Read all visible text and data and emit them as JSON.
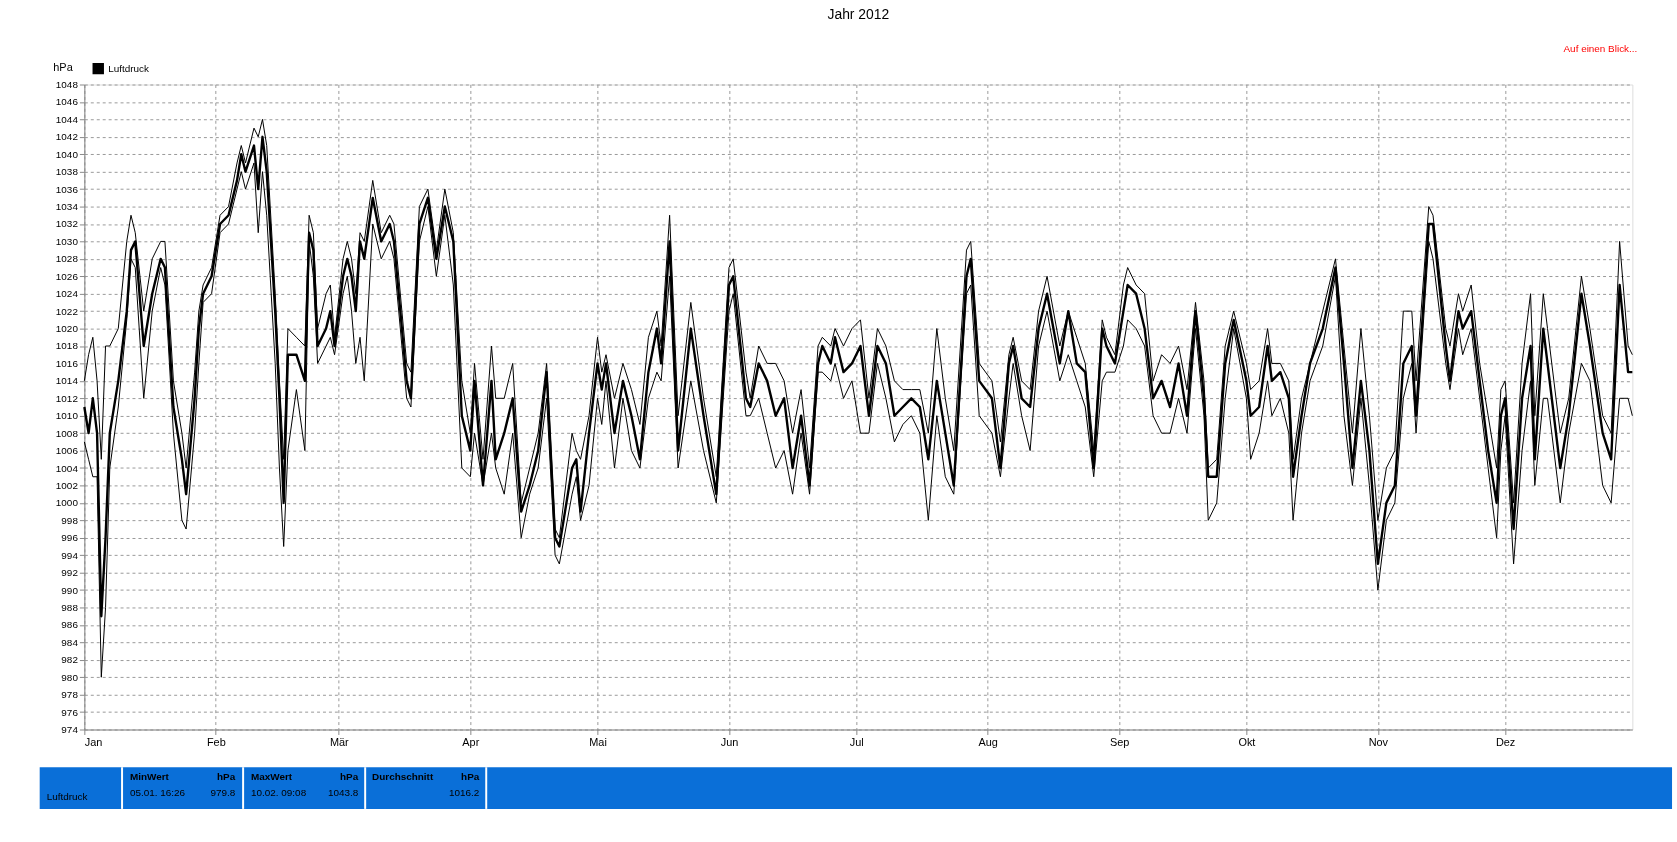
{
  "chart_data": {
    "type": "line",
    "title": "Jahr 2012",
    "ylabel": "hPa",
    "x": [
      "2012-01-01",
      "2012-01-02",
      "2012-01-03",
      "2012-01-04",
      "2012-01-05",
      "2012-01-06",
      "2012-01-07",
      "2012-01-09",
      "2012-01-11",
      "2012-01-12",
      "2012-01-13",
      "2012-01-15",
      "2012-01-17",
      "2012-01-19",
      "2012-01-20",
      "2012-01-22",
      "2012-01-24",
      "2012-01-25",
      "2012-01-27",
      "2012-01-28",
      "2012-01-29",
      "2012-01-31",
      "2012-02-02",
      "2012-02-04",
      "2012-02-06",
      "2012-02-07",
      "2012-02-08",
      "2012-02-10",
      "2012-02-11",
      "2012-02-12",
      "2012-02-13",
      "2012-02-15",
      "2012-02-16",
      "2012-02-17",
      "2012-02-18",
      "2012-02-20",
      "2012-02-22",
      "2012-02-23",
      "2012-02-24",
      "2012-02-25",
      "2012-02-27",
      "2012-02-28",
      "2012-02-29",
      "2012-03-02",
      "2012-03-03",
      "2012-03-04",
      "2012-03-05",
      "2012-03-06",
      "2012-03-07",
      "2012-03-09",
      "2012-03-11",
      "2012-03-13",
      "2012-03-14",
      "2012-03-17",
      "2012-03-18",
      "2012-03-20",
      "2012-03-22",
      "2012-03-24",
      "2012-03-26",
      "2012-03-28",
      "2012-03-30",
      "2012-04-01",
      "2012-04-02",
      "2012-04-04",
      "2012-04-06",
      "2012-04-07",
      "2012-04-09",
      "2012-04-11",
      "2012-04-13",
      "2012-04-15",
      "2012-04-17",
      "2012-04-19",
      "2012-04-21",
      "2012-04-22",
      "2012-04-25",
      "2012-04-26",
      "2012-04-27",
      "2012-04-29",
      "2012-05-01",
      "2012-05-02",
      "2012-05-03",
      "2012-05-05",
      "2012-05-07",
      "2012-05-09",
      "2012-05-11",
      "2012-05-13",
      "2012-05-15",
      "2012-05-16",
      "2012-05-18",
      "2012-05-20",
      "2012-05-23",
      "2012-05-26",
      "2012-05-29",
      "2012-06-01",
      "2012-06-02",
      "2012-06-05",
      "2012-06-06",
      "2012-06-08",
      "2012-06-10",
      "2012-06-12",
      "2012-06-14",
      "2012-06-16",
      "2012-06-18",
      "2012-06-20",
      "2012-06-22",
      "2012-06-23",
      "2012-06-25",
      "2012-06-26",
      "2012-06-28",
      "2012-06-30",
      "2012-07-02",
      "2012-07-04",
      "2012-07-06",
      "2012-07-08",
      "2012-07-10",
      "2012-07-12",
      "2012-07-14",
      "2012-07-16",
      "2012-07-18",
      "2012-07-20",
      "2012-07-22",
      "2012-07-24",
      "2012-07-27",
      "2012-07-28",
      "2012-07-30",
      "2012-08-02",
      "2012-08-04",
      "2012-08-06",
      "2012-08-07",
      "2012-08-09",
      "2012-08-11",
      "2012-08-13",
      "2012-08-15",
      "2012-08-18",
      "2012-08-20",
      "2012-08-22",
      "2012-08-24",
      "2012-08-26",
      "2012-08-28",
      "2012-08-29",
      "2012-08-31",
      "2012-09-02",
      "2012-09-03",
      "2012-09-05",
      "2012-09-07",
      "2012-09-09",
      "2012-09-11",
      "2012-09-13",
      "2012-09-15",
      "2012-09-17",
      "2012-09-19",
      "2012-09-21",
      "2012-09-22",
      "2012-09-24",
      "2012-09-26",
      "2012-09-28",
      "2012-10-01",
      "2012-10-02",
      "2012-10-04",
      "2012-10-06",
      "2012-10-07",
      "2012-10-09",
      "2012-10-11",
      "2012-10-12",
      "2012-10-14",
      "2012-10-16",
      "2012-10-19",
      "2012-10-22",
      "2012-10-24",
      "2012-10-26",
      "2012-10-28",
      "2012-10-30",
      "2012-11-01",
      "2012-11-03",
      "2012-11-05",
      "2012-11-07",
      "2012-11-09",
      "2012-11-10",
      "2012-11-13",
      "2012-11-14",
      "2012-11-17",
      "2012-11-18",
      "2012-11-20",
      "2012-11-21",
      "2012-11-23",
      "2012-11-25",
      "2012-11-27",
      "2012-11-29",
      "2012-11-30",
      "2012-12-01",
      "2012-12-03",
      "2012-12-05",
      "2012-12-07",
      "2012-12-08",
      "2012-12-10",
      "2012-12-11",
      "2012-12-14",
      "2012-12-16",
      "2012-12-19",
      "2012-12-21",
      "2012-12-24",
      "2012-12-26",
      "2012-12-28",
      "2012-12-30",
      "2012-12-31"
    ],
    "series": [
      {
        "name": "Luftdruck",
        "color": "#000000",
        "values": [
          1011,
          1008,
          1012,
          1008,
          987,
          996,
          1008,
          1014,
          1022,
          1029,
          1030,
          1018,
          1024,
          1028,
          1027,
          1011,
          1005,
          1001,
          1012,
          1020,
          1024,
          1026,
          1032,
          1033,
          1037,
          1040,
          1038,
          1041,
          1036,
          1042,
          1038,
          1022,
          1012,
          1000,
          1017,
          1017,
          1014,
          1031,
          1029,
          1018,
          1020,
          1022,
          1018,
          1026,
          1028,
          1026,
          1022,
          1030,
          1028,
          1035,
          1030,
          1032,
          1030,
          1014,
          1012,
          1032,
          1035,
          1028,
          1034,
          1030,
          1010,
          1006,
          1014,
          1002,
          1014,
          1005,
          1008,
          1012,
          999,
          1002,
          1006,
          1015,
          996,
          995,
          1004,
          1005,
          999,
          1008,
          1016,
          1013,
          1016,
          1008,
          1014,
          1010,
          1005,
          1015,
          1020,
          1016,
          1030,
          1006,
          1020,
          1010,
          1001,
          1025,
          1026,
          1012,
          1011,
          1016,
          1014,
          1010,
          1012,
          1004,
          1010,
          1002,
          1016,
          1018,
          1016,
          1019,
          1015,
          1016,
          1018,
          1010,
          1018,
          1016,
          1010,
          1011,
          1012,
          1011,
          1005,
          1014,
          1008,
          1002,
          1026,
          1028,
          1014,
          1012,
          1004,
          1016,
          1018,
          1012,
          1011,
          1020,
          1024,
          1016,
          1022,
          1016,
          1015,
          1004,
          1020,
          1018,
          1016,
          1022,
          1025,
          1024,
          1020,
          1012,
          1014,
          1011,
          1016,
          1010,
          1022,
          1012,
          1003,
          1003,
          1016,
          1021,
          1014,
          1010,
          1011,
          1018,
          1014,
          1015,
          1012,
          1003,
          1010,
          1016,
          1020,
          1027,
          1016,
          1004,
          1014,
          1006,
          993,
          1000,
          1002,
          1016,
          1018,
          1010,
          1032,
          1032,
          1018,
          1014,
          1022,
          1020,
          1022,
          1014,
          1006,
          1000,
          1010,
          1012,
          997,
          1012,
          1018,
          1005,
          1020,
          1016,
          1004,
          1010,
          1024,
          1018,
          1008,
          1005,
          1025,
          1015,
          1015
        ]
      },
      {
        "color": "#000000",
        "values": [
          1014,
          1017,
          1019,
          1014,
          1005,
          1018,
          1018,
          1020,
          1030,
          1033,
          1031,
          1022,
          1028,
          1030,
          1030,
          1014,
          1008,
          1004,
          1015,
          1022,
          1025,
          1027,
          1033,
          1034,
          1039,
          1041,
          1039,
          1043,
          1042,
          1044,
          1041,
          1024,
          1014,
          1005,
          1020,
          1019,
          1018,
          1033,
          1031,
          1020,
          1024,
          1025,
          1019,
          1028,
          1030,
          1028,
          1024,
          1031,
          1030,
          1037,
          1031,
          1033,
          1032,
          1016,
          1015,
          1034,
          1036,
          1029,
          1036,
          1031,
          1014,
          1008,
          1016,
          1005,
          1018,
          1012,
          1012,
          1016,
          1000,
          1004,
          1008,
          1016,
          997,
          996,
          1008,
          1006,
          1005,
          1010,
          1019,
          1015,
          1017,
          1012,
          1016,
          1013,
          1009,
          1019,
          1022,
          1018,
          1033,
          1010,
          1023,
          1012,
          1003,
          1027,
          1028,
          1015,
          1012,
          1018,
          1016,
          1016,
          1014,
          1008,
          1013,
          1004,
          1018,
          1019,
          1018,
          1020,
          1018,
          1020,
          1021,
          1012,
          1020,
          1018,
          1014,
          1013,
          1013,
          1013,
          1008,
          1020,
          1012,
          1006,
          1029,
          1030,
          1016,
          1014,
          1007,
          1017,
          1019,
          1014,
          1013,
          1022,
          1026,
          1018,
          1022,
          1019,
          1016,
          1006,
          1021,
          1019,
          1017,
          1025,
          1027,
          1025,
          1024,
          1014,
          1017,
          1016,
          1018,
          1013,
          1023,
          1014,
          1004,
          1005,
          1018,
          1022,
          1016,
          1013,
          1014,
          1020,
          1016,
          1016,
          1014,
          1005,
          1012,
          1016,
          1022,
          1028,
          1018,
          1008,
          1020,
          1010,
          998,
          1004,
          1006,
          1022,
          1022,
          1014,
          1034,
          1033,
          1020,
          1018,
          1024,
          1022,
          1025,
          1016,
          1010,
          1004,
          1013,
          1014,
          1000,
          1016,
          1024,
          1010,
          1024,
          1020,
          1008,
          1012,
          1026,
          1020,
          1010,
          1008,
          1030,
          1018,
          1017
        ]
      },
      {
        "color": "#000000",
        "values": [
          1007,
          1005,
          1003,
          1003,
          980,
          988,
          1004,
          1011,
          1021,
          1028,
          1027,
          1012,
          1022,
          1027,
          1025,
          1008,
          998,
          997,
          1008,
          1016,
          1023,
          1024,
          1031,
          1032,
          1036,
          1038,
          1036,
          1039,
          1031,
          1038,
          1033,
          1016,
          1004,
          995,
          1006,
          1013,
          1006,
          1030,
          1026,
          1016,
          1018,
          1019,
          1017,
          1024,
          1026,
          1022,
          1016,
          1019,
          1014,
          1032,
          1028,
          1030,
          1028,
          1012,
          1011,
          1030,
          1034,
          1026,
          1033,
          1025,
          1004,
          1003,
          1008,
          1002,
          1008,
          1004,
          1001,
          1008,
          996,
          1001,
          1004,
          1012,
          994,
          993,
          1001,
          1003,
          998,
          1002,
          1012,
          1009,
          1014,
          1004,
          1012,
          1006,
          1004,
          1012,
          1015,
          1014,
          1026,
          1004,
          1014,
          1006,
          1000,
          1022,
          1024,
          1010,
          1010,
          1012,
          1008,
          1004,
          1006,
          1001,
          1008,
          1001,
          1015,
          1015,
          1014,
          1016,
          1012,
          1014,
          1008,
          1008,
          1016,
          1012,
          1007,
          1009,
          1010,
          1008,
          998,
          1010,
          1003,
          1001,
          1024,
          1025,
          1010,
          1008,
          1003,
          1012,
          1016,
          1010,
          1006,
          1018,
          1022,
          1014,
          1017,
          1014,
          1011,
          1003,
          1014,
          1015,
          1015,
          1018,
          1021,
          1020,
          1018,
          1010,
          1008,
          1008,
          1012,
          1008,
          1020,
          1010,
          998,
          1000,
          1012,
          1020,
          1012,
          1005,
          1008,
          1014,
          1010,
          1012,
          1008,
          998,
          1008,
          1014,
          1018,
          1026,
          1010,
          1002,
          1012,
          1002,
          990,
          998,
          1000,
          1012,
          1016,
          1008,
          1030,
          1028,
          1016,
          1013,
          1020,
          1017,
          1020,
          1012,
          1004,
          996,
          1006,
          1010,
          993,
          1006,
          1014,
          1002,
          1012,
          1012,
          1000,
          1008,
          1016,
          1014,
          1002,
          1000,
          1012,
          1012,
          1010
        ]
      }
    ],
    "xlim": [
      "2012-01-01",
      "2012-12-31"
    ],
    "xticks": [
      {
        "value": "2012-01-01",
        "label": "Jan"
      },
      {
        "value": "2012-02-01",
        "label": "Feb"
      },
      {
        "value": "2012-03-01",
        "label": "Mär"
      },
      {
        "value": "2012-04-01",
        "label": "Apr"
      },
      {
        "value": "2012-05-01",
        "label": "Mai"
      },
      {
        "value": "2012-06-01",
        "label": "Jun"
      },
      {
        "value": "2012-07-01",
        "label": "Jul"
      },
      {
        "value": "2012-08-01",
        "label": "Aug"
      },
      {
        "value": "2012-09-01",
        "label": "Sep"
      },
      {
        "value": "2012-10-01",
        "label": "Okt"
      },
      {
        "value": "2012-11-01",
        "label": "Nov"
      },
      {
        "value": "2012-12-01",
        "label": "Dez"
      }
    ],
    "ylim": [
      974,
      1048
    ],
    "yticks": [
      974,
      976,
      978,
      980,
      982,
      984,
      986,
      988,
      990,
      992,
      994,
      996,
      998,
      1000,
      1002,
      1004,
      1006,
      1008,
      1010,
      1012,
      1014,
      1016,
      1018,
      1020,
      1022,
      1024,
      1026,
      1028,
      1030,
      1032,
      1034,
      1036,
      1038,
      1040,
      1042,
      1044,
      1046,
      1048
    ],
    "grid": true,
    "legend": "top left",
    "marker": "none",
    "line_style": "solid",
    "annotations": [
      "Auf einen Blick...",
      "Luftdruck",
      "MinWert",
      "hPa",
      "05.01.  16:26",
      "979.8",
      "MaxWert",
      "hPa",
      "10.02.  09:08",
      "1043.8",
      "Durchschnitt",
      "hPa",
      "1016.2"
    ]
  }
}
